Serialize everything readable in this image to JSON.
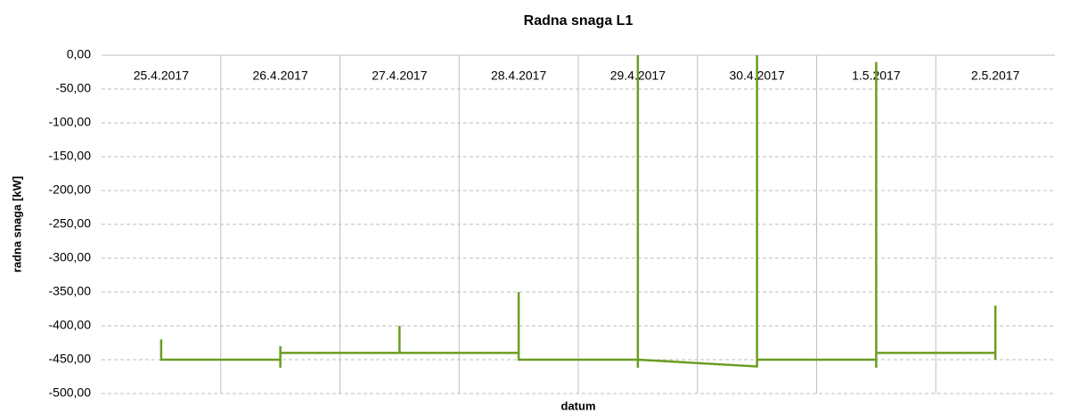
{
  "chart_data": {
    "type": "line",
    "title": "Radna snaga L1",
    "x_label": "datum",
    "y_label": "radna snaga [kW]",
    "categories": [
      "25.4.2017",
      "26.4.2017",
      "27.4.2017",
      "28.4.2017",
      "29.4.2017",
      "30.4.2017",
      "1.5.2017",
      "2.5.2017"
    ],
    "series": [
      {
        "name": "Radna snaga L1",
        "color": "#6a9d22",
        "x": [
          "25.4.2017",
          "25.4.2017",
          "26.4.2017",
          "26.4.2017",
          "26.4.2017",
          "26.4.2017",
          "27.4.2017",
          "27.4.2017",
          "27.4.2017",
          "28.4.2017",
          "28.4.2017",
          "28.4.2017",
          "29.4.2017",
          "29.4.2017",
          "29.4.2017",
          "29.4.2017",
          "30.4.2017",
          "30.4.2017",
          "30.4.2017",
          "1.5.2017",
          "1.5.2017",
          "1.5.2017",
          "1.5.2017",
          "2.5.2017",
          "2.5.2017",
          "2.5.2017"
        ],
        "values": [
          -420,
          -450,
          -450,
          -430,
          -462,
          -440,
          -440,
          -400,
          -440,
          -440,
          -350,
          -450,
          -450,
          0,
          -462,
          -450,
          -460,
          0,
          -450,
          -450,
          -10,
          -462,
          -440,
          -440,
          -370,
          -450
        ]
      }
    ],
    "ylim": [
      -500,
      0
    ],
    "yticks": [
      {
        "value": 0,
        "label": "0,00"
      },
      {
        "value": -50,
        "label": "-50,00"
      },
      {
        "value": -100,
        "label": "-100,00"
      },
      {
        "value": -150,
        "label": "-150,00"
      },
      {
        "value": -200,
        "label": "-200,00"
      },
      {
        "value": -250,
        "label": "-250,00"
      },
      {
        "value": -300,
        "label": "-300,00"
      },
      {
        "value": -350,
        "label": "-350,00"
      },
      {
        "value": -400,
        "label": "-400,00"
      },
      {
        "value": -450,
        "label": "-450,00"
      },
      {
        "value": -500,
        "label": "-500,00"
      }
    ],
    "grid": true
  }
}
